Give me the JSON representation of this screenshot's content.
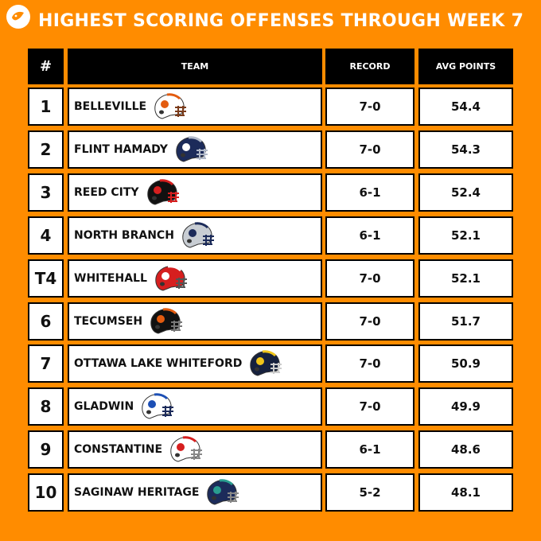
{
  "title": "HIGHEST SCORING OFFENSES  THROUGH WEEK 7",
  "header": {
    "num": "#",
    "team": "TEAM",
    "record": "RECORD",
    "avg": "AVG POINTS"
  },
  "rows": [
    {
      "rank": "1",
      "team": "BELLEVILLE",
      "record": "7-0",
      "avg": "54.4",
      "helmet": {
        "shell": "#ffffff",
        "stripe": "#e35b0f",
        "mask": "#7a3b1b",
        "logo": "#e35b0f"
      }
    },
    {
      "rank": "2",
      "team": "FLINT HAMADY",
      "record": "7-0",
      "avg": "54.3",
      "helmet": {
        "shell": "#1c2b5a",
        "stripe": "#b0b8c8",
        "mask": "#b0b8c8",
        "logo": "#ffffff"
      }
    },
    {
      "rank": "3",
      "team": "REED CITY",
      "record": "6-1",
      "avg": "52.4",
      "helmet": {
        "shell": "#111111",
        "stripe": "#d61f1f",
        "mask": "#d61f1f",
        "logo": "#d61f1f"
      }
    },
    {
      "rank": "4",
      "team": "NORTH BRANCH",
      "record": "6-1",
      "avg": "52.1",
      "helmet": {
        "shell": "#c8cdd3",
        "stripe": "#1c2b5a",
        "mask": "#1c2b5a",
        "logo": "#1c2b5a"
      }
    },
    {
      "rank": "T4",
      "team": "WHITEHALL",
      "record": "7-0",
      "avg": "52.1",
      "helmet": {
        "shell": "#d61f1f",
        "stripe": "#ffffff",
        "mask": "#555555",
        "logo": "#ffffff"
      }
    },
    {
      "rank": "6",
      "team": "TECUMSEH",
      "record": "7-0",
      "avg": "51.7",
      "helmet": {
        "shell": "#111111",
        "stripe": "#e35b0f",
        "mask": "#777777",
        "logo": "#e35b0f"
      }
    },
    {
      "rank": "7",
      "team": "OTTAWA LAKE WHITEFORD",
      "record": "7-0",
      "avg": "50.9",
      "helmet": {
        "shell": "#16213e",
        "stripe": "#f0c419",
        "mask": "#cccccc",
        "logo": "#f0c419"
      }
    },
    {
      "rank": "8",
      "team": "GLADWIN",
      "record": "7-0",
      "avg": "49.9",
      "helmet": {
        "shell": "#ffffff",
        "stripe": "#1c4fb5",
        "mask": "#1c2b5a",
        "logo": "#1c4fb5"
      }
    },
    {
      "rank": "9",
      "team": "CONSTANTINE",
      "record": "6-1",
      "avg": "48.6",
      "helmet": {
        "shell": "#ffffff",
        "stripe": "#d61f1f",
        "mask": "#888888",
        "logo": "#d61f1f"
      }
    },
    {
      "rank": "10",
      "team": "SAGINAW HERITAGE",
      "record": "5-2",
      "avg": "48.1",
      "helmet": {
        "shell": "#1c2b5a",
        "stripe": "#2a9d8f",
        "mask": "#888888",
        "logo": "#2a9d8f"
      }
    }
  ]
}
